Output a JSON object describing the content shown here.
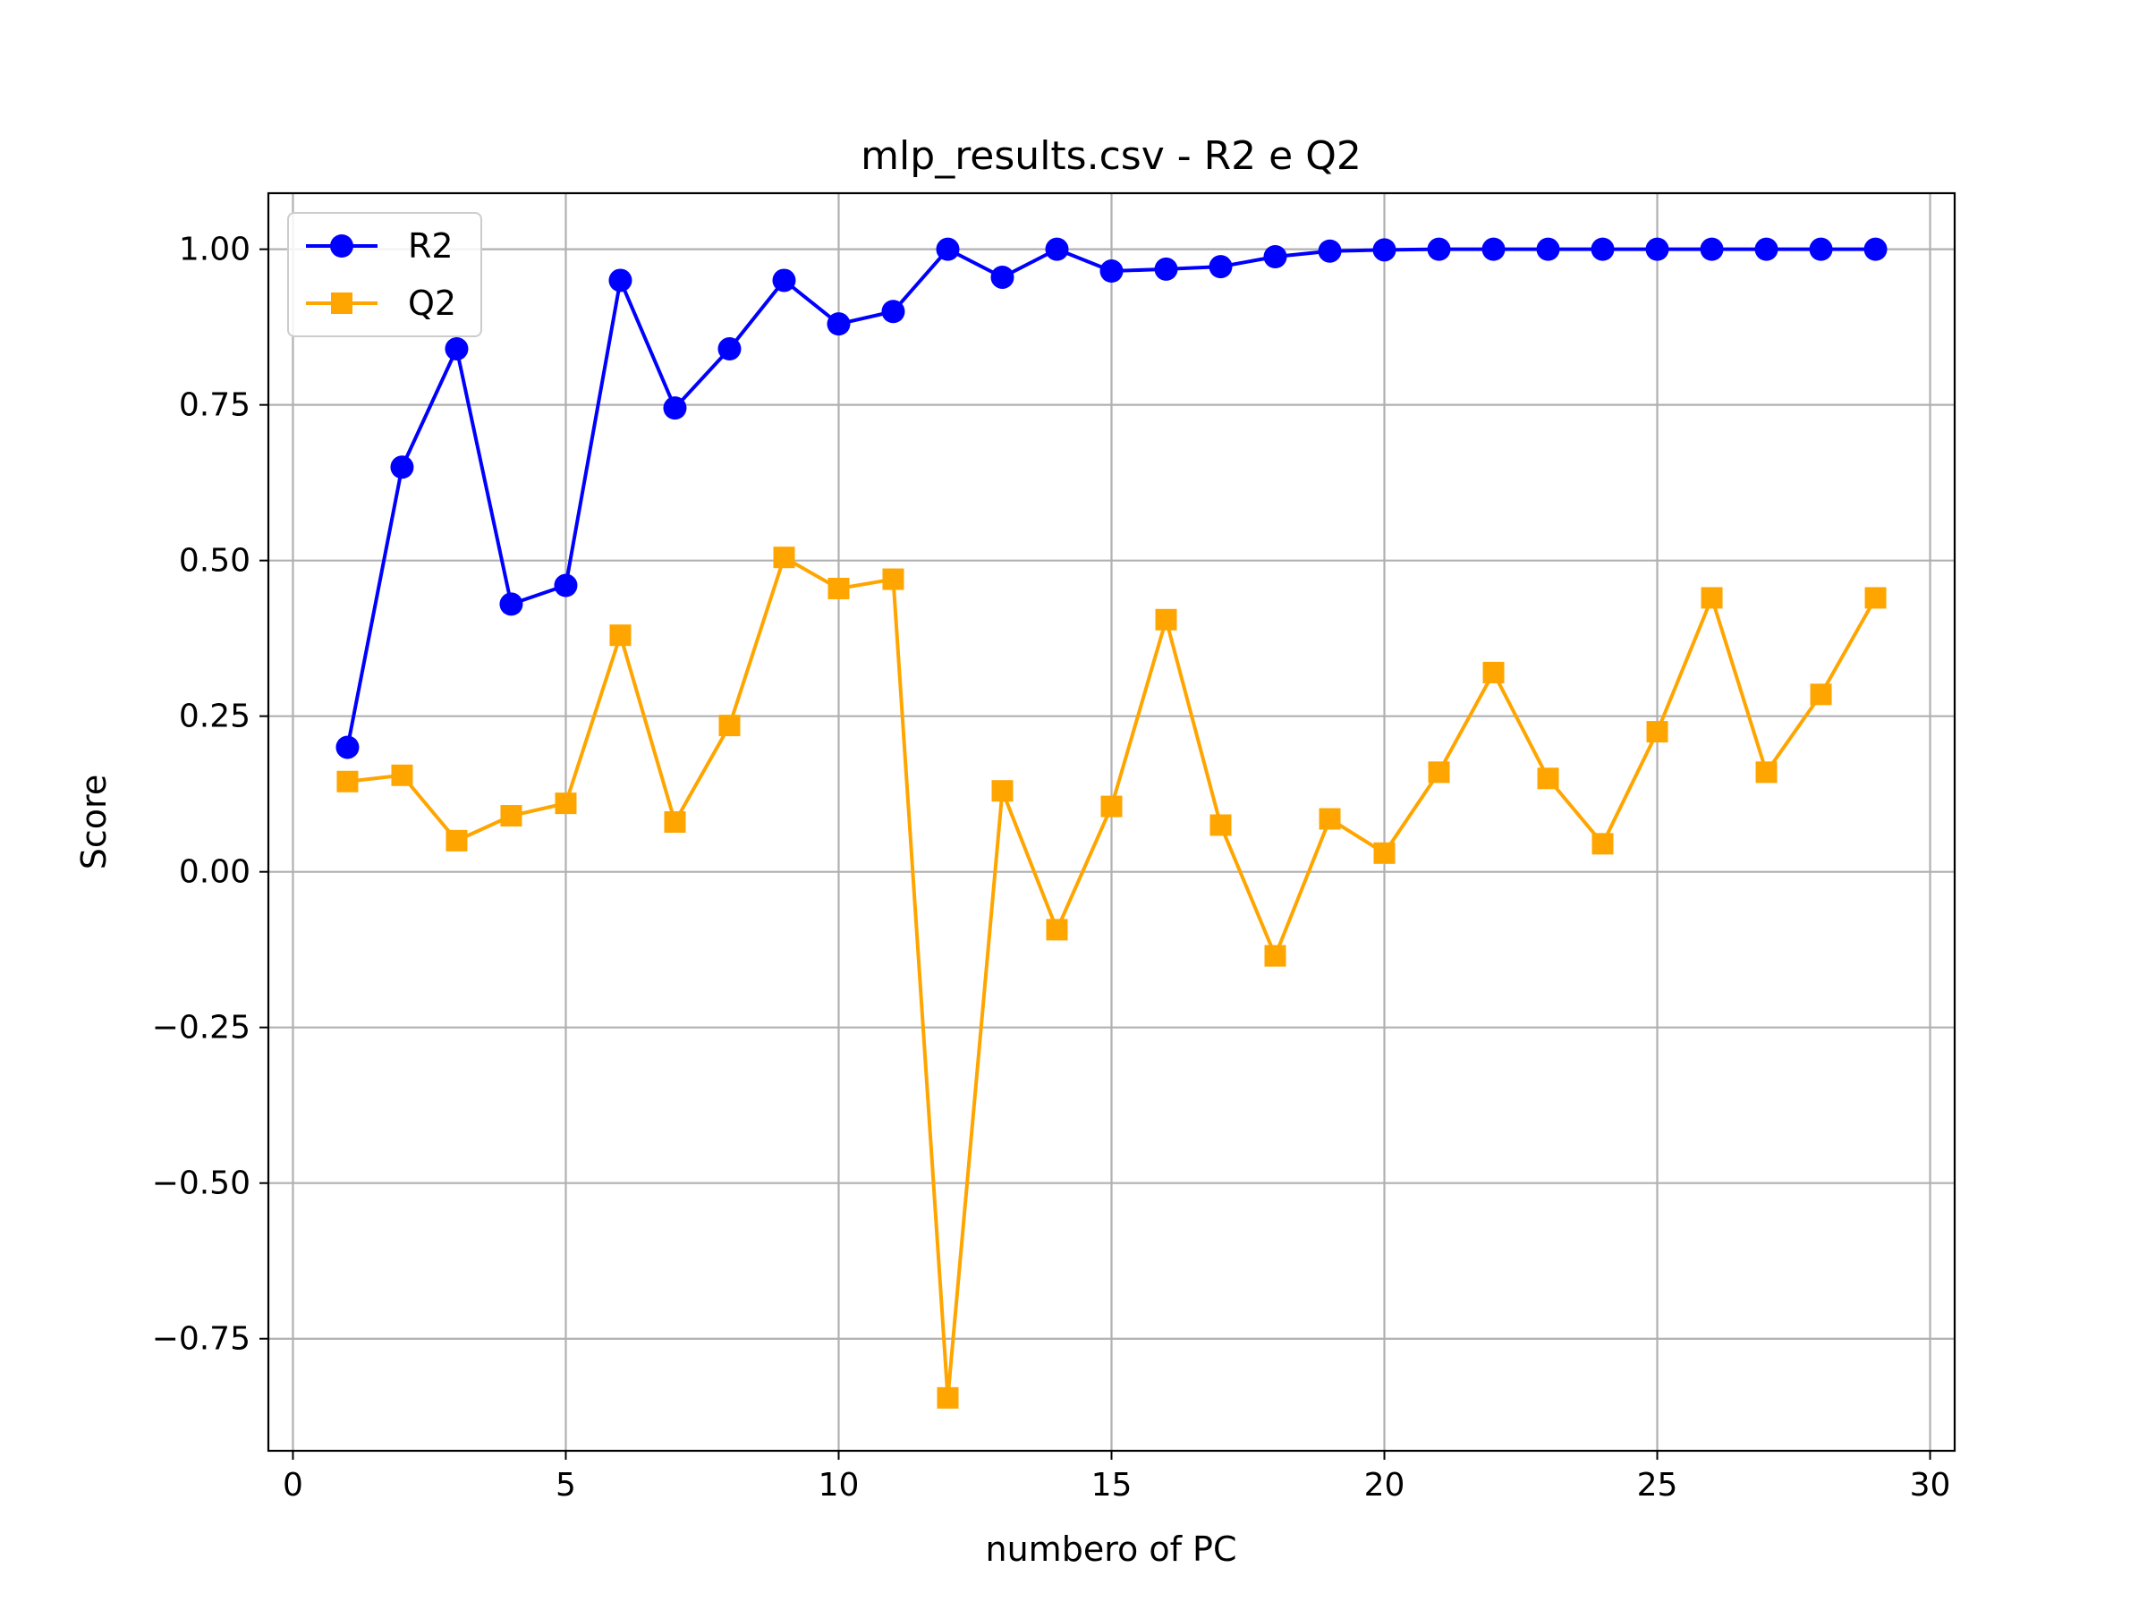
{
  "chart_data": {
    "type": "line",
    "title": "mlp_results.csv - R2 e Q2",
    "xlabel": "numbero of PC",
    "ylabel": "Score",
    "xlim": [
      -0.45,
      30.45
    ],
    "ylim": [
      -0.93,
      1.09
    ],
    "xticks": [
      0,
      5,
      10,
      15,
      20,
      25,
      30
    ],
    "xtick_labels": [
      "0",
      "5",
      "10",
      "15",
      "20",
      "25",
      "30"
    ],
    "yticks": [
      -0.75,
      -0.5,
      -0.25,
      0.0,
      0.25,
      0.5,
      0.75,
      1.0
    ],
    "ytick_labels": [
      "−0.75",
      "−0.50",
      "−0.25",
      "0.00",
      "0.25",
      "0.50",
      "0.75",
      "1.00"
    ],
    "grid": true,
    "legend_position": "top-left",
    "x": [
      1,
      2,
      3,
      4,
      5,
      6,
      7,
      8,
      9,
      10,
      11,
      12,
      13,
      14,
      15,
      16,
      17,
      18,
      19,
      20,
      21,
      22,
      23,
      24,
      25,
      26,
      27,
      28,
      29
    ],
    "series": [
      {
        "name": "R2",
        "color": "#0000ff",
        "marker": "circle",
        "values": [
          0.2,
          0.65,
          0.84,
          0.43,
          0.46,
          0.95,
          0.745,
          0.84,
          0.95,
          0.88,
          0.9,
          1.0,
          0.955,
          1.0,
          0.965,
          0.968,
          0.972,
          0.988,
          0.997,
          0.999,
          1.0,
          1.0,
          1.0,
          1.0,
          1.0,
          1.0,
          1.0,
          1.0,
          1.0
        ]
      },
      {
        "name": "Q2",
        "color": "#ffa500",
        "marker": "square",
        "values": [
          0.145,
          0.155,
          0.05,
          0.09,
          0.11,
          0.38,
          0.08,
          0.235,
          0.505,
          0.455,
          0.47,
          -0.845,
          0.13,
          -0.093,
          0.105,
          0.405,
          0.075,
          -0.135,
          0.085,
          0.03,
          0.16,
          0.32,
          0.15,
          0.045,
          0.225,
          0.44,
          0.16,
          0.285,
          0.44
        ]
      }
    ]
  }
}
